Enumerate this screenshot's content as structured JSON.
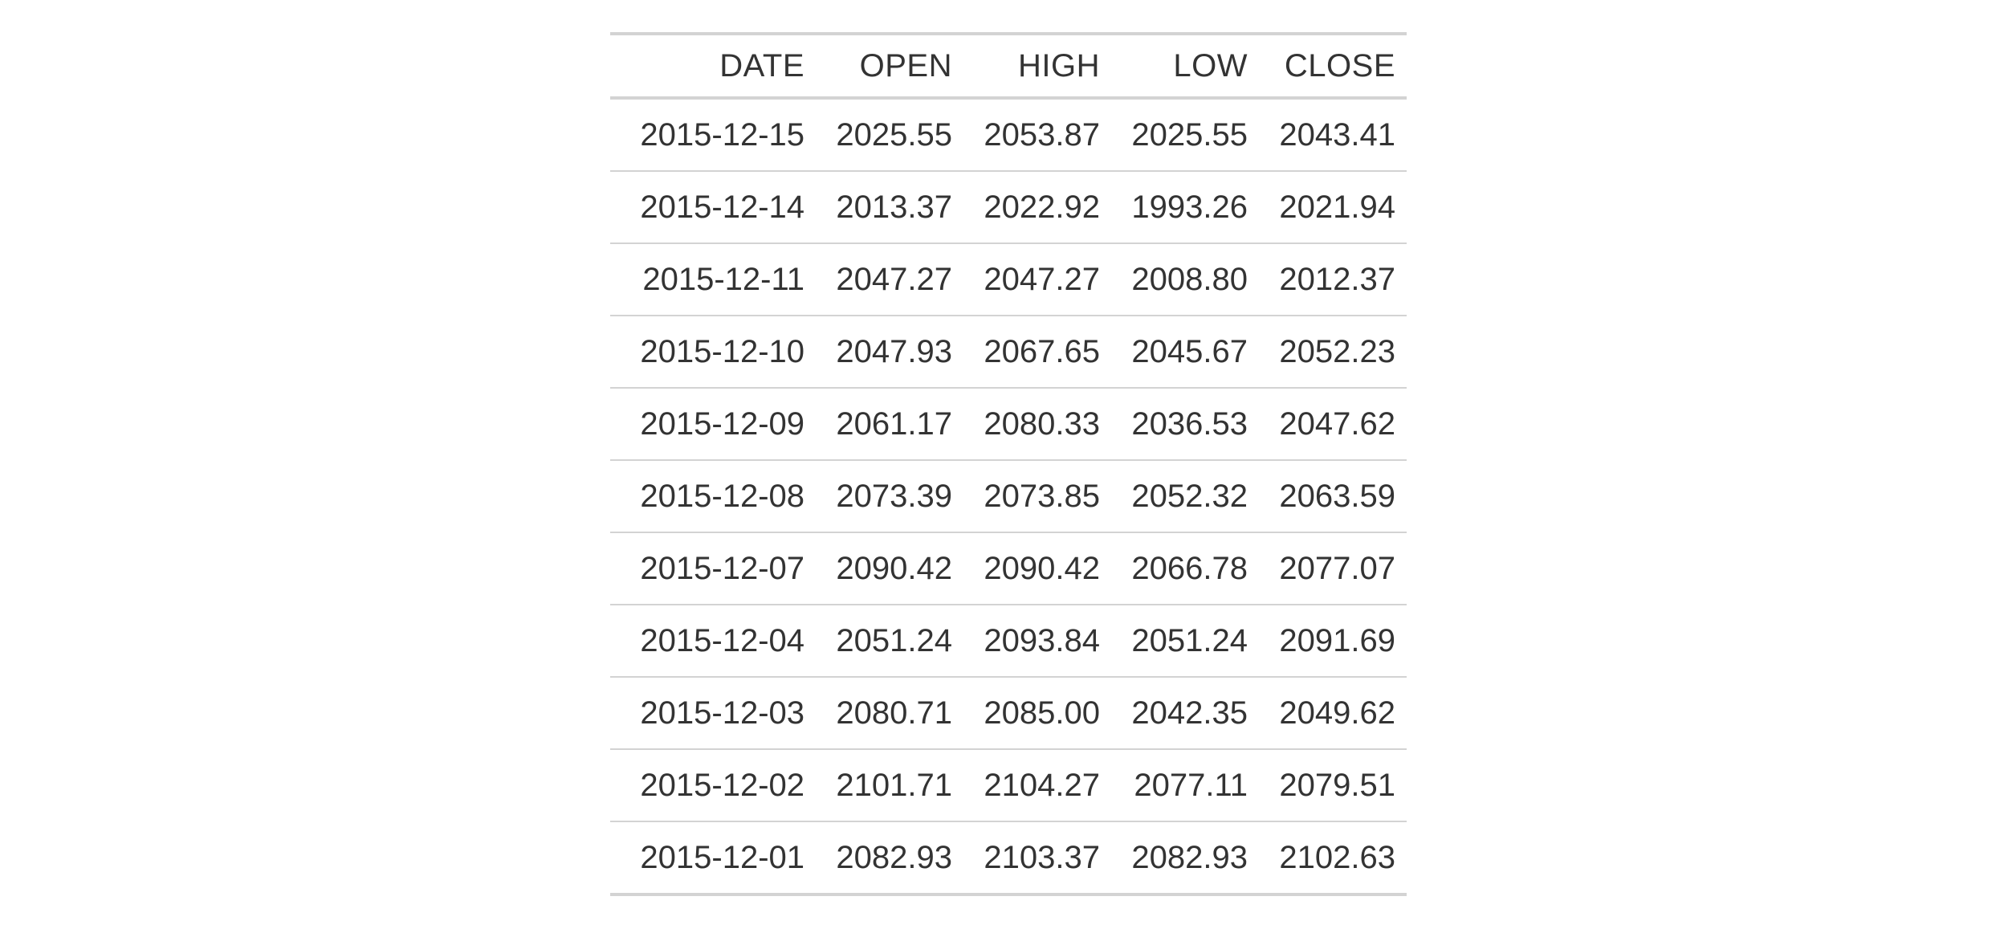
{
  "table": {
    "columns": [
      "DATE",
      "OPEN",
      "HIGH",
      "LOW",
      "CLOSE"
    ],
    "rows": [
      [
        "2015-12-15",
        "2025.55",
        "2053.87",
        "2025.55",
        "2043.41"
      ],
      [
        "2015-12-14",
        "2013.37",
        "2022.92",
        "1993.26",
        "2021.94"
      ],
      [
        "2015-12-11",
        "2047.27",
        "2047.27",
        "2008.80",
        "2012.37"
      ],
      [
        "2015-12-10",
        "2047.93",
        "2067.65",
        "2045.67",
        "2052.23"
      ],
      [
        "2015-12-09",
        "2061.17",
        "2080.33",
        "2036.53",
        "2047.62"
      ],
      [
        "2015-12-08",
        "2073.39",
        "2073.85",
        "2052.32",
        "2063.59"
      ],
      [
        "2015-12-07",
        "2090.42",
        "2090.42",
        "2066.78",
        "2077.07"
      ],
      [
        "2015-12-04",
        "2051.24",
        "2093.84",
        "2051.24",
        "2091.69"
      ],
      [
        "2015-12-03",
        "2080.71",
        "2085.00",
        "2042.35",
        "2049.62"
      ],
      [
        "2015-12-02",
        "2101.71",
        "2104.27",
        "2077.11",
        "2079.51"
      ],
      [
        "2015-12-01",
        "2082.93",
        "2103.37",
        "2082.93",
        "2102.63"
      ]
    ]
  }
}
